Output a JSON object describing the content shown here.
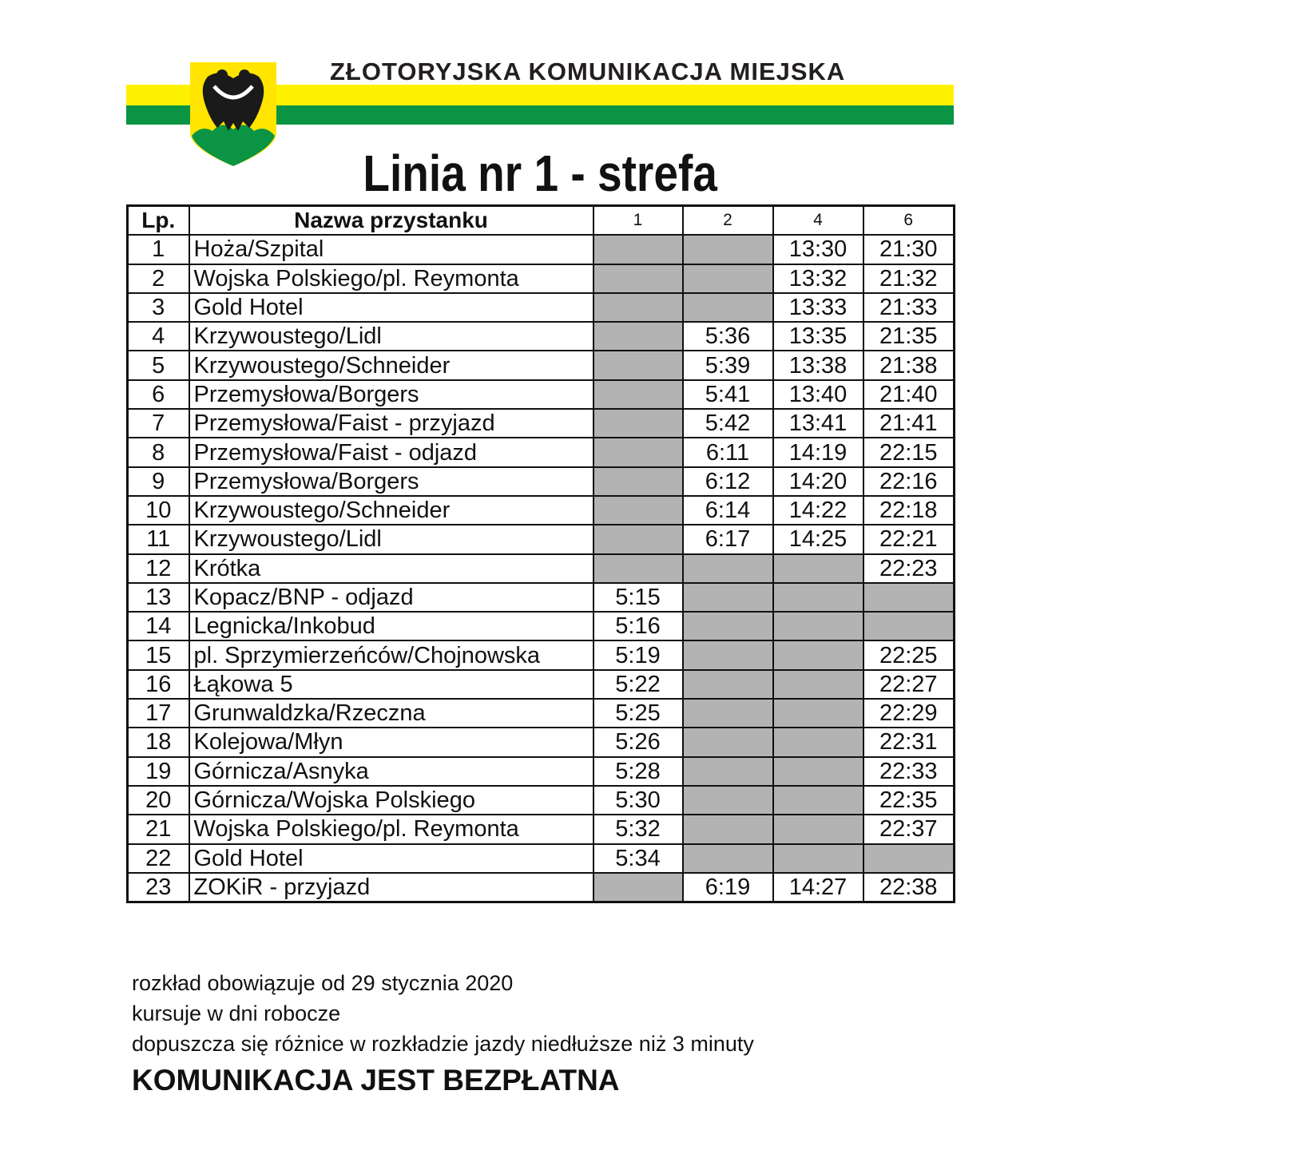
{
  "header": {
    "organization": "ZŁOTORYJSKA KOMUNIKACJA MIEJSKA",
    "logo": "coat-of-arms-eagle",
    "colors": {
      "yellow": "#fff200",
      "green": "#0a9444",
      "gray_cell": "#b3b3b3"
    }
  },
  "title": "Linia nr 1 - strefa",
  "table": {
    "headers": {
      "lp": "Lp.",
      "name": "Nazwa przystanku",
      "courses": [
        "1",
        "2",
        "4",
        "6"
      ]
    },
    "rows": [
      {
        "lp": "1",
        "name": "Hoża/Szpital",
        "times": [
          null,
          null,
          "13:30",
          "21:30"
        ]
      },
      {
        "lp": "2",
        "name": "Wojska Polskiego/pl. Reymonta",
        "times": [
          null,
          null,
          "13:32",
          "21:32"
        ]
      },
      {
        "lp": "3",
        "name": "Gold Hotel",
        "times": [
          null,
          null,
          "13:33",
          "21:33"
        ]
      },
      {
        "lp": "4",
        "name": "Krzywoustego/Lidl",
        "times": [
          null,
          "5:36",
          "13:35",
          "21:35"
        ]
      },
      {
        "lp": "5",
        "name": "Krzywoustego/Schneider",
        "times": [
          null,
          "5:39",
          "13:38",
          "21:38"
        ]
      },
      {
        "lp": "6",
        "name": "Przemysłowa/Borgers",
        "times": [
          null,
          "5:41",
          "13:40",
          "21:40"
        ]
      },
      {
        "lp": "7",
        "name": "Przemysłowa/Faist - przyjazd",
        "times": [
          null,
          "5:42",
          "13:41",
          "21:41"
        ]
      },
      {
        "lp": "8",
        "name": "Przemysłowa/Faist - odjazd",
        "times": [
          null,
          "6:11",
          "14:19",
          "22:15"
        ]
      },
      {
        "lp": "9",
        "name": "Przemysłowa/Borgers",
        "times": [
          null,
          "6:12",
          "14:20",
          "22:16"
        ]
      },
      {
        "lp": "10",
        "name": "Krzywoustego/Schneider",
        "times": [
          null,
          "6:14",
          "14:22",
          "22:18"
        ]
      },
      {
        "lp": "11",
        "name": "Krzywoustego/Lidl",
        "times": [
          null,
          "6:17",
          "14:25",
          "22:21"
        ]
      },
      {
        "lp": "12",
        "name": "Krótka",
        "times": [
          null,
          null,
          null,
          "22:23"
        ]
      },
      {
        "lp": "13",
        "name": "Kopacz/BNP - odjazd",
        "times": [
          "5:15",
          null,
          null,
          null
        ]
      },
      {
        "lp": "14",
        "name": "Legnicka/Inkobud",
        "times": [
          "5:16",
          null,
          null,
          null
        ]
      },
      {
        "lp": "15",
        "name": "pl. Sprzymierzeńców/Chojnowska",
        "times": [
          "5:19",
          null,
          null,
          "22:25"
        ]
      },
      {
        "lp": "16",
        "name": "Łąkowa 5",
        "times": [
          "5:22",
          null,
          null,
          "22:27"
        ]
      },
      {
        "lp": "17",
        "name": "Grunwaldzka/Rzeczna",
        "times": [
          "5:25",
          null,
          null,
          "22:29"
        ]
      },
      {
        "lp": "18",
        "name": "Kolejowa/Młyn",
        "times": [
          "5:26",
          null,
          null,
          "22:31"
        ]
      },
      {
        "lp": "19",
        "name": "Górnicza/Asnyka",
        "times": [
          "5:28",
          null,
          null,
          "22:33"
        ]
      },
      {
        "lp": "20",
        "name": "Górnicza/Wojska Polskiego",
        "times": [
          "5:30",
          null,
          null,
          "22:35"
        ]
      },
      {
        "lp": "21",
        "name": "Wojska Polskiego/pl. Reymonta",
        "times": [
          "5:32",
          null,
          null,
          "22:37"
        ]
      },
      {
        "lp": "22",
        "name": "Gold Hotel",
        "times": [
          "5:34",
          null,
          null,
          null
        ]
      },
      {
        "lp": "23",
        "name": "ZOKiR - przyjazd",
        "times": [
          null,
          "6:19",
          "14:27",
          "22:38"
        ]
      }
    ]
  },
  "footer": {
    "notes": [
      "rozkład obowiązuje od 29 stycznia 2020",
      "kursuje w dni robocze",
      "dopuszcza się różnice w rozkładzie jazdy niedłuższe niż 3 minuty"
    ],
    "emphasis": "KOMUNIKACJA JEST BEZPŁATNA"
  }
}
